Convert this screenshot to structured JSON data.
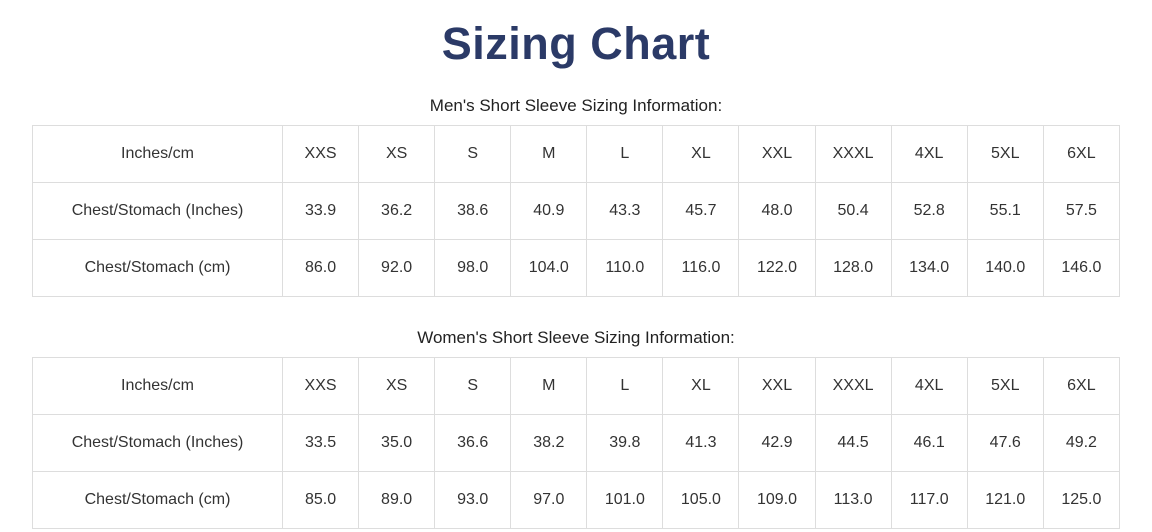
{
  "page": {
    "title": "Sizing Chart"
  },
  "colors": {
    "title": "#2b3a67",
    "table_border": "#dddddd",
    "body_text": "#333333"
  },
  "tables": [
    {
      "heading": "Men's Short Sleeve Sizing Information:",
      "header": [
        "Inches/cm",
        "XXS",
        "XS",
        "S",
        "M",
        "L",
        "XL",
        "XXL",
        "XXXL",
        "4XL",
        "5XL",
        "6XL"
      ],
      "rows": [
        [
          "Chest/Stomach (Inches)",
          "33.9",
          "36.2",
          "38.6",
          "40.9",
          "43.3",
          "45.7",
          "48.0",
          "50.4",
          "52.8",
          "55.1",
          "57.5"
        ],
        [
          "Chest/Stomach (cm)",
          "86.0",
          "92.0",
          "98.0",
          "104.0",
          "110.0",
          "116.0",
          "122.0",
          "128.0",
          "134.0",
          "140.0",
          "146.0"
        ]
      ]
    },
    {
      "heading": "Women's Short Sleeve Sizing Information:",
      "header": [
        "Inches/cm",
        "XXS",
        "XS",
        "S",
        "M",
        "L",
        "XL",
        "XXL",
        "XXXL",
        "4XL",
        "5XL",
        "6XL"
      ],
      "rows": [
        [
          "Chest/Stomach (Inches)",
          "33.5",
          "35.0",
          "36.6",
          "38.2",
          "39.8",
          "41.3",
          "42.9",
          "44.5",
          "46.1",
          "47.6",
          "49.2"
        ],
        [
          "Chest/Stomach (cm)",
          "85.0",
          "89.0",
          "93.0",
          "97.0",
          "101.0",
          "105.0",
          "109.0",
          "113.0",
          "117.0",
          "121.0",
          "125.0"
        ]
      ]
    }
  ]
}
